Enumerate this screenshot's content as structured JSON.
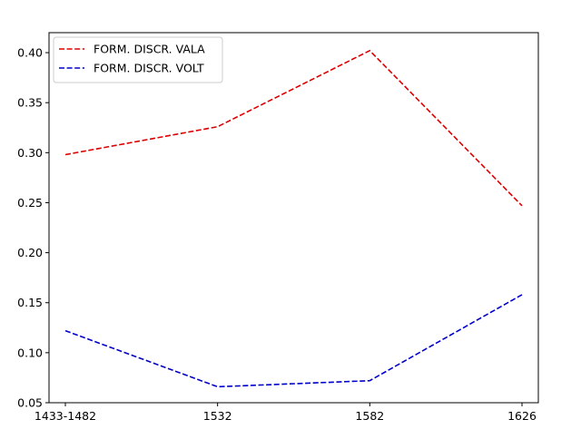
{
  "chart_data": {
    "type": "line",
    "title": "",
    "xlabel": "",
    "ylabel": "",
    "categories": [
      "1433-1482",
      "1532",
      "1582",
      "1626"
    ],
    "ylim": [
      0.05,
      0.42
    ],
    "yticks": [
      0.05,
      0.1,
      0.15,
      0.2,
      0.25,
      0.3,
      0.35,
      0.4
    ],
    "ytick_labels": [
      "0.05",
      "0.10",
      "0.15",
      "0.20",
      "0.25",
      "0.30",
      "0.35",
      "0.40"
    ],
    "grid": false,
    "legend_position": "top-left",
    "series": [
      {
        "name": "FORM. DISCR. VALA",
        "color": "#dd0000",
        "line_style": "dashed",
        "values": [
          0.298,
          0.326,
          0.402,
          0.247
        ]
      },
      {
        "name": "FORM. DISCR. VOLT",
        "color": "#0000cc",
        "line_style": "dashed",
        "values": [
          0.122,
          0.066,
          0.072,
          0.158
        ]
      }
    ]
  }
}
